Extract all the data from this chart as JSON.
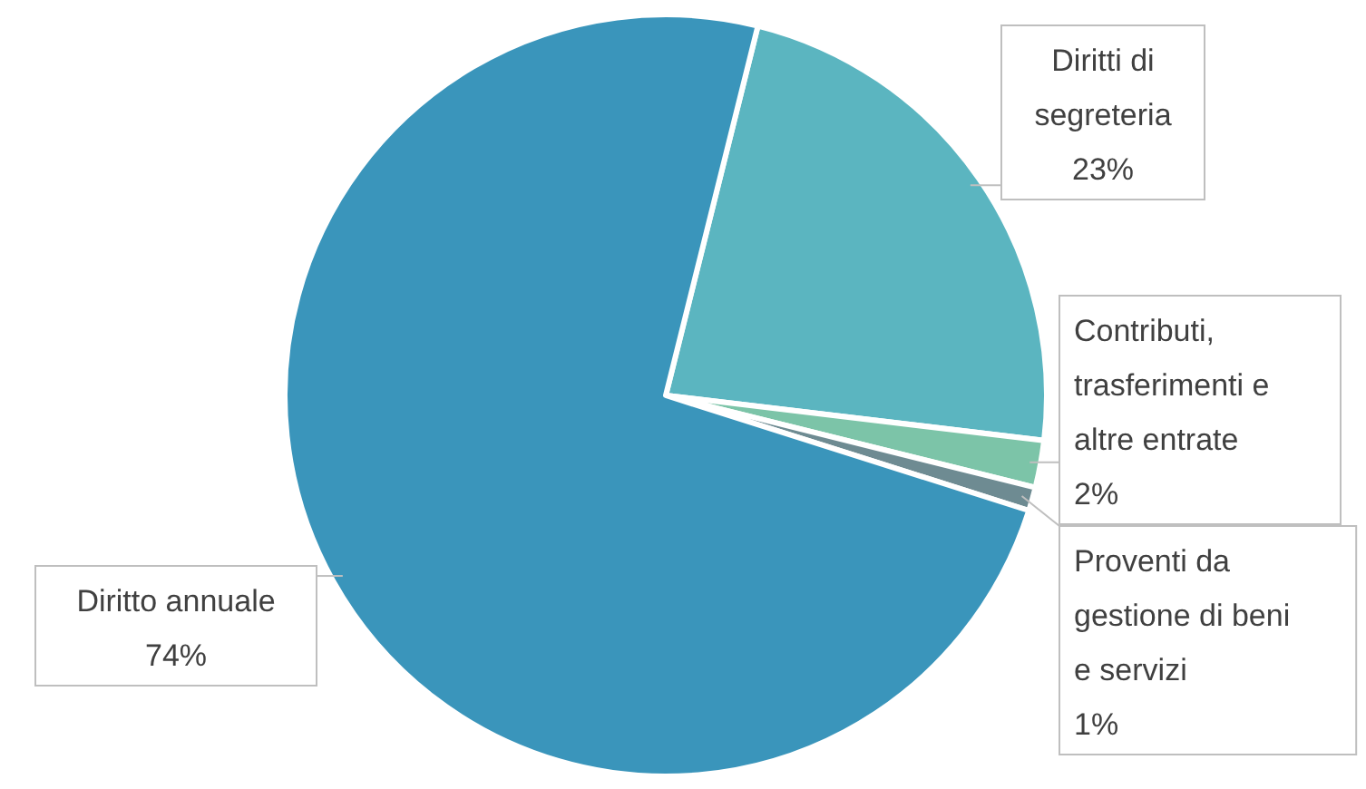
{
  "chart_data": {
    "type": "pie",
    "categories": [
      "Diritti di segreteria",
      "Contributi, trasferimenti e altre entrate",
      "Proventi da gestione di beni e servizi",
      "Diritto annuale"
    ],
    "values": [
      23,
      2,
      1,
      74
    ],
    "colors": [
      "#5bb5c0",
      "#7cc4a8",
      "#6e8b92",
      "#3a95bb"
    ],
    "value_labels": [
      "23%",
      "2%",
      "1%",
      "74%"
    ]
  }
}
